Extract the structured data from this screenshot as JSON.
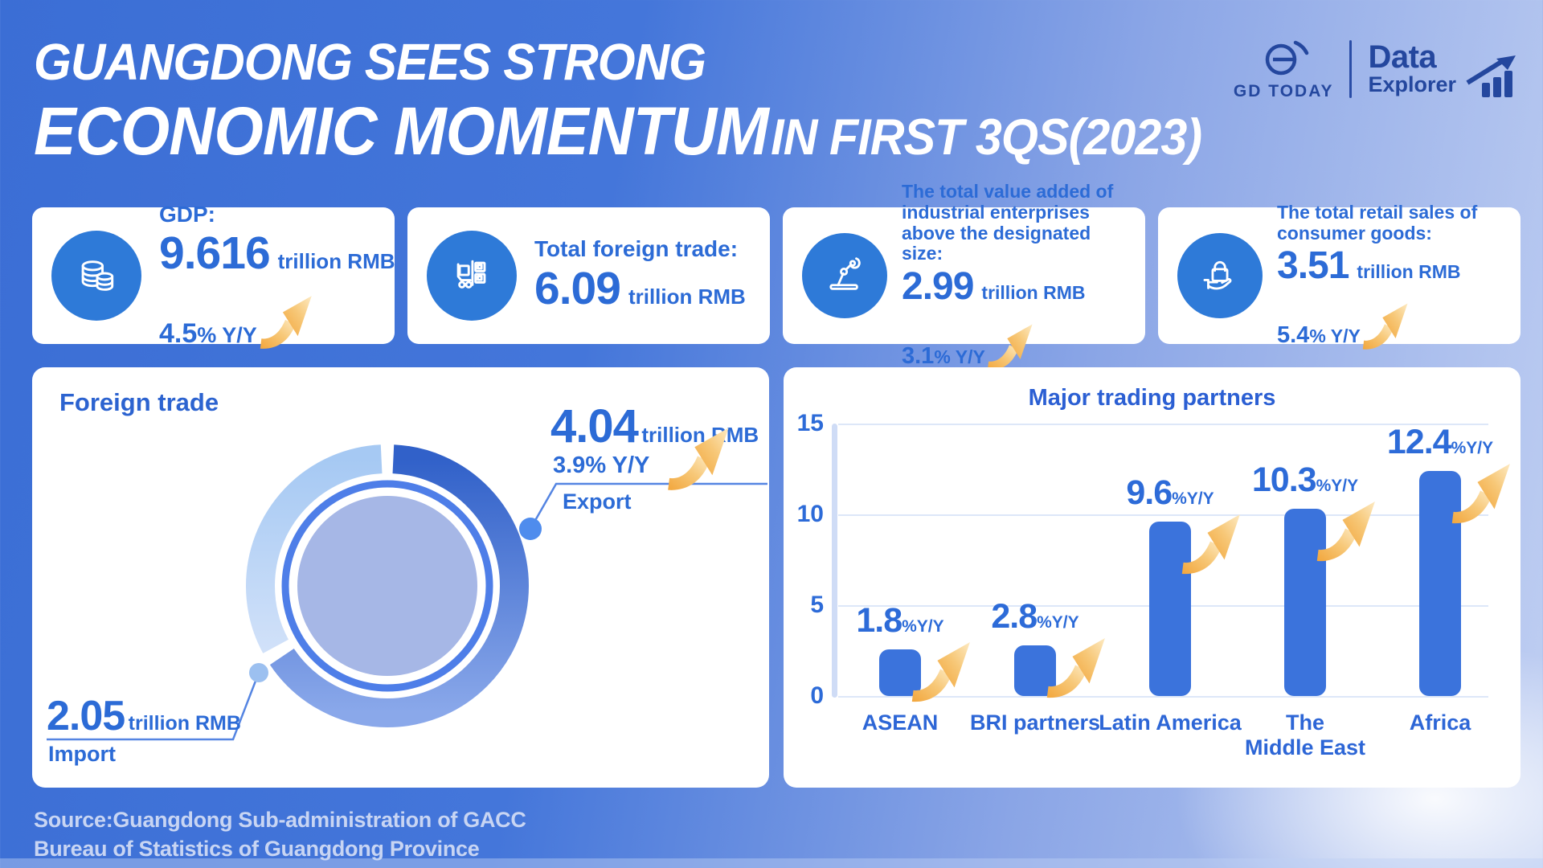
{
  "title": {
    "line1": "GUANGDONG SEES STRONG",
    "line2_main": "ECONOMIC MOMENTUM",
    "line2_rest": " IN FIRST 3QS(2023)"
  },
  "logo": {
    "brand": "GD TODAY",
    "product_line1": "Data",
    "product_line2": "Explorer"
  },
  "cards": [
    {
      "label": "GDP:",
      "value": "9.616",
      "unit": "trillion RMB",
      "delta": "4.5",
      "delta_suffix": "% Y/Y"
    },
    {
      "label": "Total foreign trade:",
      "value": "6.09",
      "unit": "trillion RMB"
    },
    {
      "label": "The total value added of industrial enterprises above the designated size:",
      "value": "2.99",
      "unit": "trillion RMB",
      "delta": "3.1",
      "delta_suffix": "% Y/Y"
    },
    {
      "label": "The total retail sales of consumer goods:",
      "value": "3.51",
      "unit": "trillion RMB",
      "delta": "5.4",
      "delta_suffix": "% Y/Y"
    }
  ],
  "foreign_trade": {
    "heading": "Foreign trade",
    "export": {
      "value": "4.04",
      "unit": "trillion RMB",
      "delta": "3.9% Y/Y",
      "label": "Export"
    },
    "import": {
      "value": "2.05",
      "unit": "trillion RMB",
      "label": "Import"
    }
  },
  "partners_panel": {
    "title": "Major trading partners",
    "yticks": [
      "15",
      "10",
      "5",
      "0"
    ],
    "category_labels": [
      "ASEAN",
      "BRI partners",
      "Latin America",
      "The\nMiddle East",
      "Africa"
    ]
  },
  "chart_data": [
    {
      "type": "pie",
      "subtype": "donut",
      "title": "Foreign trade",
      "unit": "trillion RMB",
      "slices": [
        {
          "label": "Export",
          "value": 4.04,
          "yoy_pct": 3.9,
          "color": "#3161c9"
        },
        {
          "label": "Import",
          "value": 2.05,
          "color": "#a6c9f3"
        }
      ]
    },
    {
      "type": "bar",
      "title": "Major trading partners",
      "categories": [
        "ASEAN",
        "BRI partners",
        "Latin America",
        "The Middle East",
        "Africa"
      ],
      "values": [
        1.8,
        2.8,
        9.6,
        10.3,
        12.4
      ],
      "value_suffix": "%Y/Y",
      "xlabel": "",
      "ylabel": "",
      "ylim": [
        0,
        15
      ],
      "yticks": [
        0,
        5,
        10,
        15
      ],
      "grid": true,
      "bar_color": "#3b73dc"
    }
  ],
  "source": {
    "line1": "Source:Guangdong Sub-administration of GACC",
    "line2": "Bureau of Statistics of Guangdong Province"
  },
  "colors": {
    "accent_blue": "#2c6bd6",
    "icon_circle": "#2e7ad8",
    "bar": "#3b73dc",
    "gold_arrow": "#f5b85c",
    "background_left": "#3b6ed5",
    "background_right": "#c0cff2"
  }
}
